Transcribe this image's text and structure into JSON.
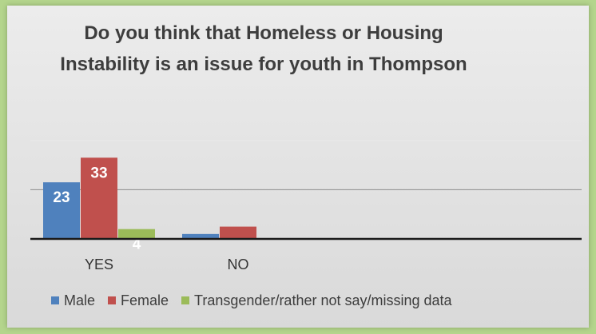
{
  "chart_data": {
    "type": "bar",
    "title": "Do you think that Homeless or Housing Instability is an issue for youth in Thompson",
    "categories": [
      "YES",
      "NO"
    ],
    "series": [
      {
        "name": "Male",
        "color": "#4f81bd",
        "values": [
          23,
          2
        ],
        "labels": [
          "23",
          ""
        ]
      },
      {
        "name": "Female",
        "color": "#c0504d",
        "values": [
          33,
          5
        ],
        "labels": [
          "33",
          ""
        ]
      },
      {
        "name": "Transgender/rather not say/missing data",
        "color": "#9bbb59",
        "values": [
          4,
          0
        ],
        "labels": [
          "4",
          ""
        ]
      }
    ],
    "ylim": [
      0,
      40
    ],
    "grid": true,
    "legend_position": "bottom"
  }
}
